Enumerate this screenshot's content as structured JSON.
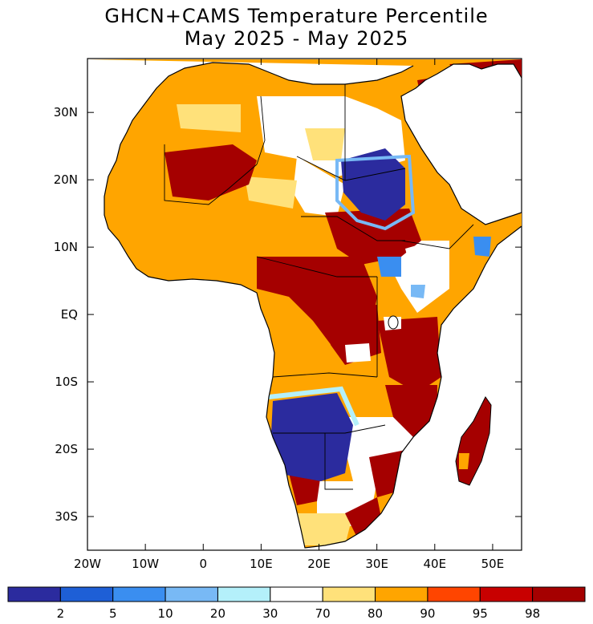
{
  "title": {
    "line1": "GHCN+CAMS Temperature Percentile",
    "line2": "May 2025 - May 2025"
  },
  "axes": {
    "y_ticks": [
      {
        "label": "30N",
        "lat": 30
      },
      {
        "label": "20N",
        "lat": 20
      },
      {
        "label": "10N",
        "lat": 10
      },
      {
        "label": "EQ",
        "lat": 0
      },
      {
        "label": "10S",
        "lat": -10
      },
      {
        "label": "20S",
        "lat": -20
      },
      {
        "label": "30S",
        "lat": -30
      }
    ],
    "x_ticks": [
      {
        "label": "20W",
        "lon": -20
      },
      {
        "label": "10W",
        "lon": -10
      },
      {
        "label": "0",
        "lon": 0
      },
      {
        "label": "10E",
        "lon": 10
      },
      {
        "label": "20E",
        "lon": 20
      },
      {
        "label": "30E",
        "lon": 30
      },
      {
        "label": "40E",
        "lon": 40
      },
      {
        "label": "50E",
        "lon": 50
      }
    ]
  },
  "colorbar": {
    "colors": [
      "#2b2b9e",
      "#1e5fd6",
      "#3a8ef0",
      "#78b9f5",
      "#b4f0fa",
      "#ffffff",
      "#ffe17a",
      "#ffa500",
      "#ff4500",
      "#c80000",
      "#a50000"
    ],
    "labels": [
      "2",
      "5",
      "10",
      "20",
      "30",
      "70",
      "80",
      "90",
      "95",
      "98"
    ]
  }
}
